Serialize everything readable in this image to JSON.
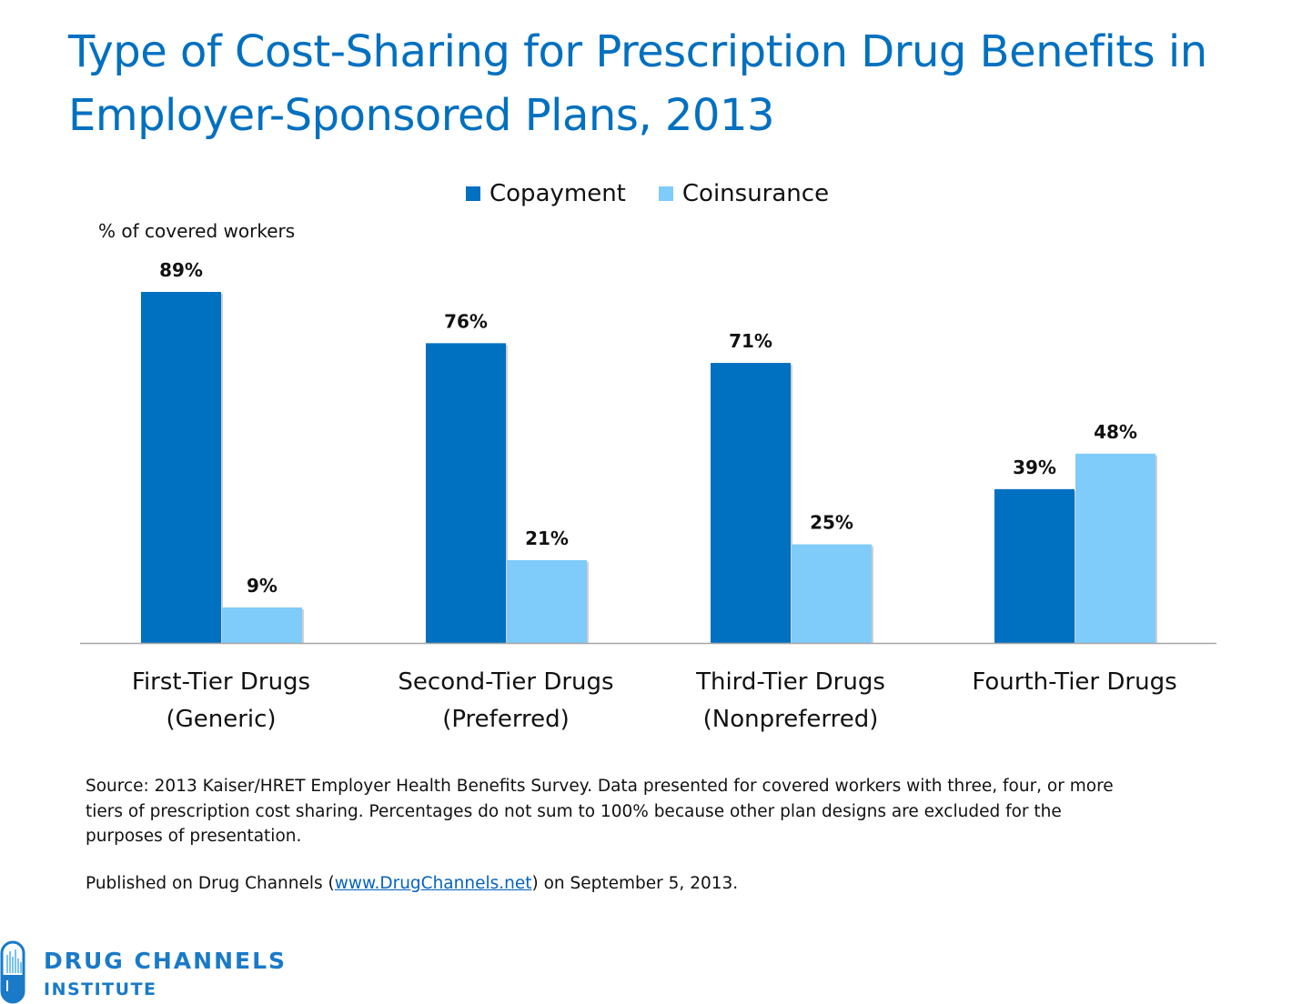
{
  "chart_data": {
    "type": "bar",
    "title": "Type of Cost-Sharing for Prescription Drug Benefits in Employer-Sponsored Plans, 2013",
    "ylabel": "% of covered workers",
    "xlabel": "",
    "categories": [
      [
        "First-Tier Drugs",
        "(Generic)"
      ],
      [
        "Second-Tier Drugs",
        "(Preferred)"
      ],
      [
        "Third-Tier Drugs",
        "(Nonpreferred)"
      ],
      [
        "Fourth-Tier Drugs",
        ""
      ]
    ],
    "series": [
      {
        "name": "Copayment",
        "color": "#0070c0",
        "values": [
          89,
          76,
          71,
          39
        ],
        "labels": [
          "89%",
          "76%",
          "71%",
          "39%"
        ]
      },
      {
        "name": "Coinsurance",
        "color": "#7fcbfa",
        "values": [
          9,
          21,
          25,
          48
        ],
        "labels": [
          "9%",
          "21%",
          "25%",
          "48%"
        ]
      }
    ],
    "ylim": [
      0,
      89
    ],
    "grid": false,
    "legend": "top-center"
  },
  "source": "Source: 2013 Kaiser/HRET Employer Health Benefits Survey. Data presented for covered workers with three, four, or more tiers of prescription cost sharing. Percentages do not sum to 100% because other plan designs are excluded for the purposes of presentation.",
  "published": {
    "before": "Published on Drug Channels (",
    "link": "www.DrugChannels.net",
    "after": ") on September 5, 2013."
  },
  "logo": {
    "line1": "DRUG CHANNELS",
    "line2": "INSTITUTE",
    "icon": "pill-icon"
  }
}
